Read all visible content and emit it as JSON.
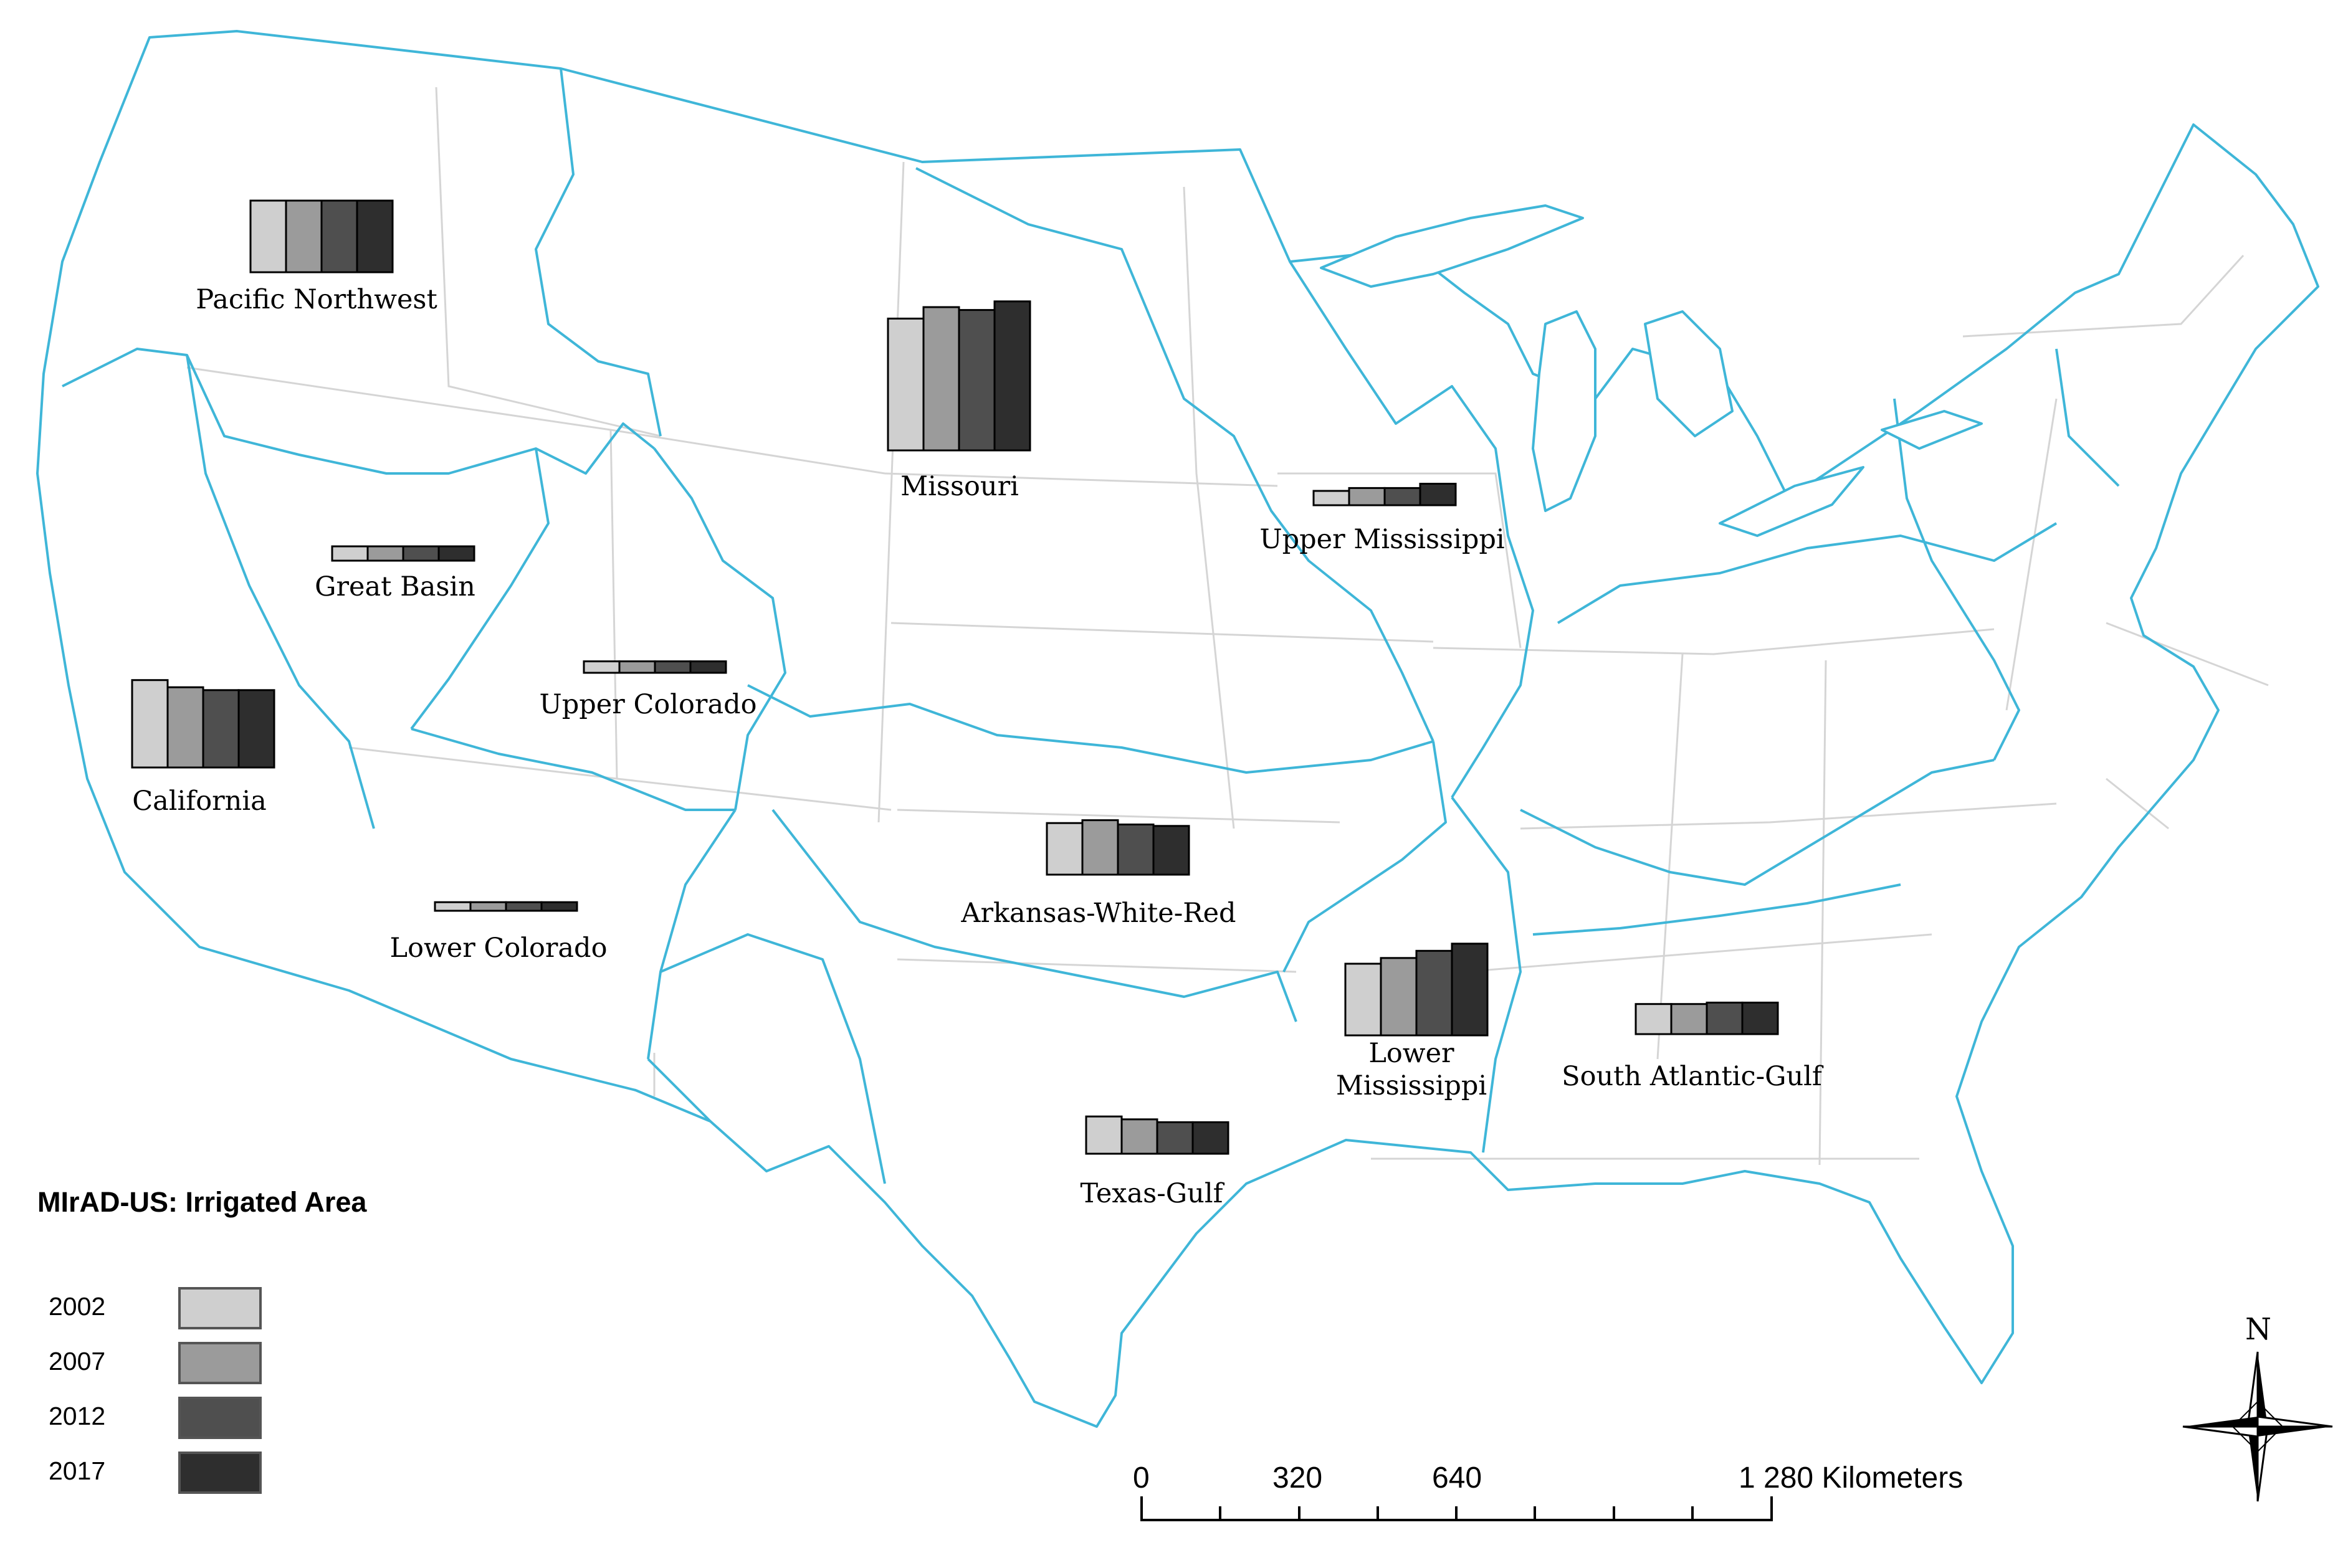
{
  "legend": {
    "title": "MIrAD-US: Irrigated Area",
    "items": [
      {
        "year": "2002",
        "color": "#cfcfcf"
      },
      {
        "year": "2007",
        "color": "#9b9b9b"
      },
      {
        "year": "2012",
        "color": "#4f4f4f"
      },
      {
        "year": "2017",
        "color": "#2e2e2e"
      }
    ]
  },
  "colors": {
    "boundary": "#3fb6d8",
    "state_lines": "#cfcfcf"
  },
  "regions": [
    {
      "label": "Pacific Northwest",
      "values": [
        0.5,
        0.5,
        0.5,
        0.5
      ]
    },
    {
      "label": "Missouri",
      "values": [
        0.92,
        1.0,
        0.98,
        1.04
      ]
    },
    {
      "label": "Great Basin",
      "values": [
        0.1,
        0.1,
        0.1,
        0.1
      ]
    },
    {
      "label": "Upper Mississippi",
      "values": [
        0.1,
        0.12,
        0.12,
        0.15
      ]
    },
    {
      "label": "Upper Colorado",
      "values": [
        0.08,
        0.08,
        0.08,
        0.08
      ]
    },
    {
      "label": "California",
      "values": [
        0.61,
        0.56,
        0.54,
        0.54
      ]
    },
    {
      "label": "Arkansas-White-Red",
      "values": [
        0.36,
        0.38,
        0.35,
        0.34
      ]
    },
    {
      "label": "Lower Colorado",
      "values": [
        0.06,
        0.06,
        0.06,
        0.06
      ]
    },
    {
      "label": "Lower Mississippi",
      "line1": "Lower",
      "line2": "Mississippi",
      "values": [
        0.5,
        0.54,
        0.59,
        0.64
      ]
    },
    {
      "label": "South Atlantic-Gulf",
      "values": [
        0.21,
        0.21,
        0.22,
        0.22
      ]
    },
    {
      "label": "Texas-Gulf",
      "values": [
        0.26,
        0.24,
        0.22,
        0.22
      ]
    }
  ],
  "scale_bar": {
    "ticks": [
      "0",
      "320",
      "640",
      "1 280 Kilometers"
    ]
  },
  "north_arrow": {
    "label": "N"
  }
}
